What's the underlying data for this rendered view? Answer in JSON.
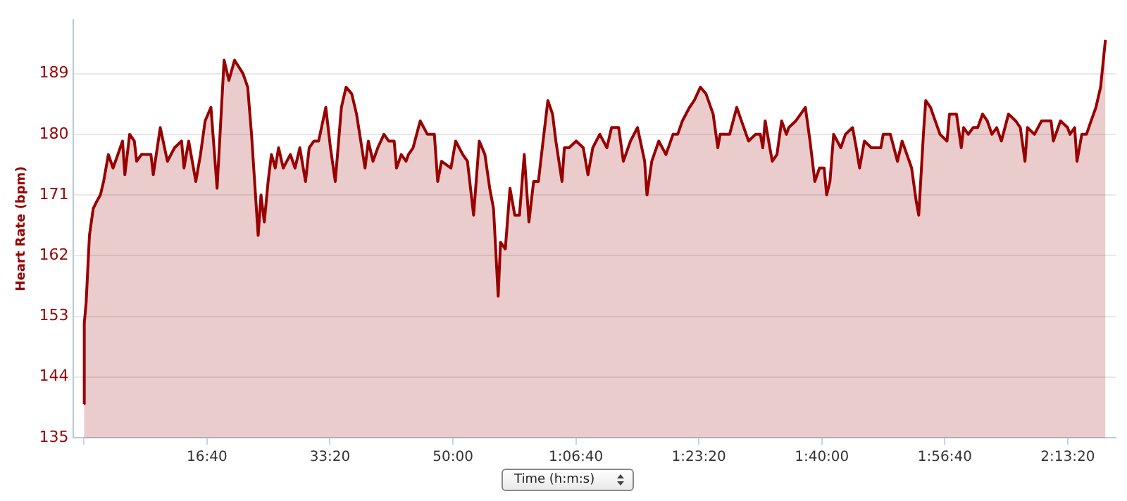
{
  "chart_data": {
    "type": "area",
    "xlabel": "Time (h:m:s)",
    "ylabel": "Heart Rate (bpm)",
    "xlim": [
      -90,
      8390
    ],
    "ylim": [
      135,
      197
    ],
    "xticks": [
      {
        "value": 0,
        "label": null
      },
      {
        "value": 1000,
        "label": "16:40"
      },
      {
        "value": 2000,
        "label": "33:20"
      },
      {
        "value": 3000,
        "label": "50:00"
      },
      {
        "value": 4000,
        "label": "1:06:40"
      },
      {
        "value": 5000,
        "label": "1:23:20"
      },
      {
        "value": 6000,
        "label": "1:40:00"
      },
      {
        "value": 7000,
        "label": "1:56:40"
      },
      {
        "value": 8000,
        "label": "2:13:20"
      }
    ],
    "yticks": [
      135,
      144,
      153,
      162,
      171,
      180,
      189
    ],
    "grid": "y",
    "legend": false,
    "marker": "none",
    "line_style": "solid",
    "series": [
      {
        "color": "#990000",
        "x": [
          0,
          2,
          17,
          44,
          75,
          102,
          133,
          159,
          198,
          236,
          275,
          313,
          332,
          371,
          409,
          428,
          467,
          544,
          563,
          620,
          678,
          736,
          793,
          813,
          851,
          909,
          947,
          985,
          1032,
          1082,
          1139,
          1178,
          1224,
          1293,
          1331,
          1362,
          1416,
          1439,
          1466,
          1497,
          1524,
          1555,
          1582,
          1620,
          1678,
          1716,
          1755,
          1801,
          1831,
          1870,
          1908,
          1966,
          2004,
          2043,
          2093,
          2131,
          2177,
          2216,
          2285,
          2312,
          2350,
          2389,
          2439,
          2477,
          2484,
          2522,
          2541,
          2580,
          2619,
          2638,
          2676,
          2734,
          2792,
          2849,
          2876,
          2907,
          2984,
          3022,
          3080,
          3118,
          3168,
          3214,
          3260,
          3299,
          3330,
          3368,
          3387,
          3426,
          3464,
          3503,
          3541,
          3580,
          3618,
          3656,
          3695,
          3733,
          3772,
          3810,
          3837,
          3887,
          3906,
          3944,
          4002,
          4060,
          4098,
          4137,
          4194,
          4252,
          4290,
          4348,
          4386,
          4444,
          4501,
          4559,
          4578,
          4617,
          4674,
          4732,
          4790,
          4828,
          4866,
          4924,
          4962,
          5012,
          5058,
          5116,
          5154,
          5173,
          5250,
          5308,
          5346,
          5404,
          5461,
          5500,
          5520,
          5539,
          5577,
          5597,
          5635,
          5673,
          5712,
          5731,
          5789,
          5866,
          5904,
          5943,
          5981,
          6019,
          6039,
          6066,
          6096,
          6154,
          6192,
          6250,
          6280,
          6307,
          6346,
          6403,
          6480,
          6499,
          6557,
          6615,
          6653,
          6692,
          6730,
          6768,
          6788,
          6826,
          6845,
          6884,
          6922,
          6961,
          7018,
          7038,
          7095,
          7134,
          7153,
          7191,
          7230,
          7268,
          7307,
          7345,
          7383,
          7422,
          7460,
          7518,
          7576,
          7614,
          7652,
          7672,
          7729,
          7787,
          7864,
          7883,
          7941,
          7998,
          8018,
          8056,
          8075,
          8114,
          8152,
          8190,
          8229,
          8267,
          8306
        ],
        "values": [
          140,
          152,
          155,
          165,
          169,
          170,
          171,
          173,
          177,
          175,
          177,
          179,
          174,
          180,
          179,
          176,
          177,
          177,
          174,
          181,
          176,
          178,
          179,
          175,
          179,
          173,
          177,
          182,
          184,
          172,
          191,
          188,
          191,
          189,
          187,
          180,
          165,
          171,
          167,
          173,
          177,
          175,
          178,
          175,
          177,
          175,
          178,
          173,
          178,
          179,
          179,
          184,
          178,
          173,
          184,
          187,
          186,
          183,
          175,
          179,
          176,
          178,
          180,
          179,
          179,
          179,
          175,
          177,
          176,
          177,
          178,
          182,
          180,
          180,
          173,
          176,
          175,
          179,
          177,
          176,
          168,
          179,
          177,
          172,
          169,
          156,
          164,
          163,
          172,
          168,
          168,
          177,
          167,
          173,
          173,
          179,
          185,
          183,
          179,
          173,
          178,
          178,
          179,
          178,
          174,
          178,
          180,
          178,
          181,
          181,
          176,
          179,
          181,
          176,
          171,
          176,
          179,
          177,
          180,
          180,
          182,
          184,
          185,
          187,
          186,
          183,
          178,
          180,
          180,
          184,
          182,
          179,
          180,
          180,
          178,
          182,
          178,
          176,
          177,
          182,
          180,
          181,
          182,
          184,
          179,
          173,
          175,
          175,
          171,
          173,
          180,
          178,
          180,
          181,
          178,
          175,
          179,
          178,
          178,
          180,
          180,
          176,
          179,
          177,
          175,
          170,
          168,
          180,
          185,
          184,
          182,
          180,
          179,
          183,
          183,
          178,
          181,
          180,
          181,
          181,
          183,
          182,
          180,
          181,
          179,
          183,
          182,
          181,
          176,
          181,
          180,
          182,
          182,
          179,
          182,
          181,
          180,
          181,
          176,
          180,
          180,
          182,
          184,
          187,
          194
        ]
      }
    ]
  }
}
